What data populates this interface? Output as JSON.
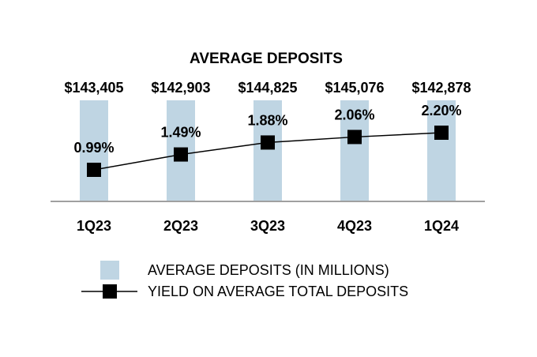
{
  "colors": {
    "bar": "#bfd5e3",
    "line": "#000000",
    "marker": "#000000",
    "axis": "#a0a0a0"
  },
  "chart_data": {
    "type": "bar",
    "title": "AVERAGE DEPOSITS",
    "categories": [
      "1Q23",
      "2Q23",
      "3Q23",
      "4Q23",
      "1Q24"
    ],
    "series": [
      {
        "name": "AVERAGE DEPOSITS (IN MILLIONS)",
        "type": "bar",
        "values": [
          143405,
          142903,
          144825,
          145076,
          142878
        ],
        "labels": [
          "$143,405",
          "$142,903",
          "$144,825",
          "$145,076",
          "$142,878"
        ]
      },
      {
        "name": "YIELD ON AVERAGE TOTAL DEPOSITS",
        "type": "line",
        "values": [
          0.99,
          1.49,
          1.88,
          2.06,
          2.2
        ],
        "labels": [
          "0.99%",
          "1.49%",
          "1.88%",
          "2.06%",
          "2.20%"
        ]
      }
    ],
    "legend": "bottom"
  }
}
